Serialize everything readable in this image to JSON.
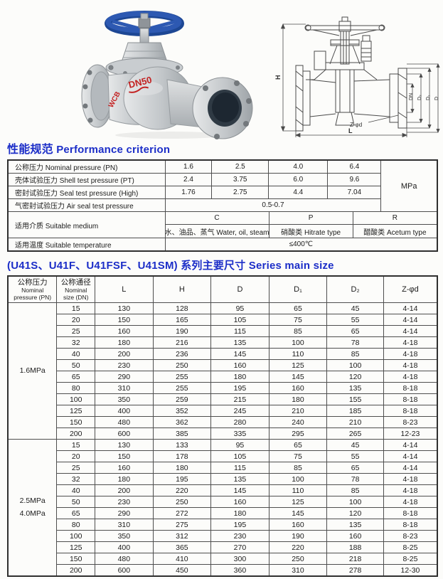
{
  "colors": {
    "heading_blue": "#1c2ec8",
    "table_border": "#4e4e4e",
    "photo_handwheel": "#2d59b2",
    "photo_body_gray": "#c6cacd",
    "photo_marking_red": "#c32222",
    "drawing_stroke": "#4a4a4a"
  },
  "figures": {
    "photo": {
      "body_marking": "DN50",
      "material_marking": "WCB"
    },
    "drawing": {
      "dim_h": "H",
      "dim_l": "L",
      "dim_dn": "DN",
      "dim_d2": "D₂",
      "dim_d1": "D₁",
      "dim_d": "D",
      "dim_z": "Z-φd"
    }
  },
  "performance": {
    "heading_zh": "性能规范",
    "heading_en": "Performance criterion",
    "unit": "MPa",
    "rows": [
      {
        "label": "公称压力 Nominal pressure (PN)",
        "values": [
          "1.6",
          "2.5",
          "4.0",
          "6.4"
        ]
      },
      {
        "label": "壳体试验压力 Shell test pressure (PT)",
        "values": [
          "2.4",
          "3.75",
          "6.0",
          "9.6"
        ]
      },
      {
        "label": "密封试验压力 Seal test pressure (High)",
        "values": [
          "1.76",
          "2.75",
          "4.4",
          "7.04"
        ]
      },
      {
        "label": "气密封试验压力 Air seal test pressure",
        "value": "0.5-0.7"
      }
    ],
    "medium": {
      "label": "适用介质 Suitable medium",
      "classes": [
        "C",
        "P",
        "R"
      ],
      "types": [
        "水、油品、蒸气 Water, oil, steam",
        "硝酸类 Hitrate type",
        "醋酸类 Acetum type"
      ]
    },
    "temperature": {
      "label": "适用温度 Suitable temperature",
      "value": "≤400℃"
    }
  },
  "series": {
    "heading": "(U41S、U41F、U41FSF、U41SM) 系列主要尺寸 Series main size",
    "col1_header": [
      "公称压力",
      "Nominal",
      "pressure (PN)"
    ],
    "col2_header": [
      "公称通径",
      "Nominal",
      "size (DN)"
    ],
    "dim_headers": [
      "L",
      "H",
      "D",
      "D₁",
      "D₂",
      "Z-φd"
    ],
    "groups": [
      {
        "pressure_lines": [
          "1.6MPa"
        ],
        "rows": [
          [
            "15",
            "130",
            "128",
            "95",
            "65",
            "45",
            "4-14"
          ],
          [
            "20",
            "150",
            "165",
            "105",
            "75",
            "55",
            "4-14"
          ],
          [
            "25",
            "160",
            "190",
            "115",
            "85",
            "65",
            "4-14"
          ],
          [
            "32",
            "180",
            "216",
            "135",
            "100",
            "78",
            "4-18"
          ],
          [
            "40",
            "200",
            "236",
            "145",
            "110",
            "85",
            "4-18"
          ],
          [
            "50",
            "230",
            "250",
            "160",
            "125",
            "100",
            "4-18"
          ],
          [
            "65",
            "290",
            "255",
            "180",
            "145",
            "120",
            "4-18"
          ],
          [
            "80",
            "310",
            "255",
            "195",
            "160",
            "135",
            "8-18"
          ],
          [
            "100",
            "350",
            "259",
            "215",
            "180",
            "155",
            "8-18"
          ],
          [
            "125",
            "400",
            "352",
            "245",
            "210",
            "185",
            "8-18"
          ],
          [
            "150",
            "480",
            "362",
            "280",
            "240",
            "210",
            "8-23"
          ],
          [
            "200",
            "600",
            "385",
            "335",
            "295",
            "265",
            "12-23"
          ]
        ]
      },
      {
        "pressure_lines": [
          "2.5MPa",
          "4.0MPa"
        ],
        "rows": [
          [
            "15",
            "130",
            "133",
            "95",
            "65",
            "45",
            "4-14"
          ],
          [
            "20",
            "150",
            "178",
            "105",
            "75",
            "55",
            "4-14"
          ],
          [
            "25",
            "160",
            "180",
            "115",
            "85",
            "65",
            "4-14"
          ],
          [
            "32",
            "180",
            "195",
            "135",
            "100",
            "78",
            "4-18"
          ],
          [
            "40",
            "200",
            "220",
            "145",
            "110",
            "85",
            "4-18"
          ],
          [
            "50",
            "230",
            "250",
            "160",
            "125",
            "100",
            "4-18"
          ],
          [
            "65",
            "290",
            "272",
            "180",
            "145",
            "120",
            "8-18"
          ],
          [
            "80",
            "310",
            "275",
            "195",
            "160",
            "135",
            "8-18"
          ],
          [
            "100",
            "350",
            "312",
            "230",
            "190",
            "160",
            "8-23"
          ],
          [
            "125",
            "400",
            "365",
            "270",
            "220",
            "188",
            "8-25"
          ],
          [
            "150",
            "480",
            "410",
            "300",
            "250",
            "218",
            "8-25"
          ],
          [
            "200",
            "600",
            "450",
            "360",
            "310",
            "278",
            "12-30"
          ]
        ]
      }
    ]
  }
}
